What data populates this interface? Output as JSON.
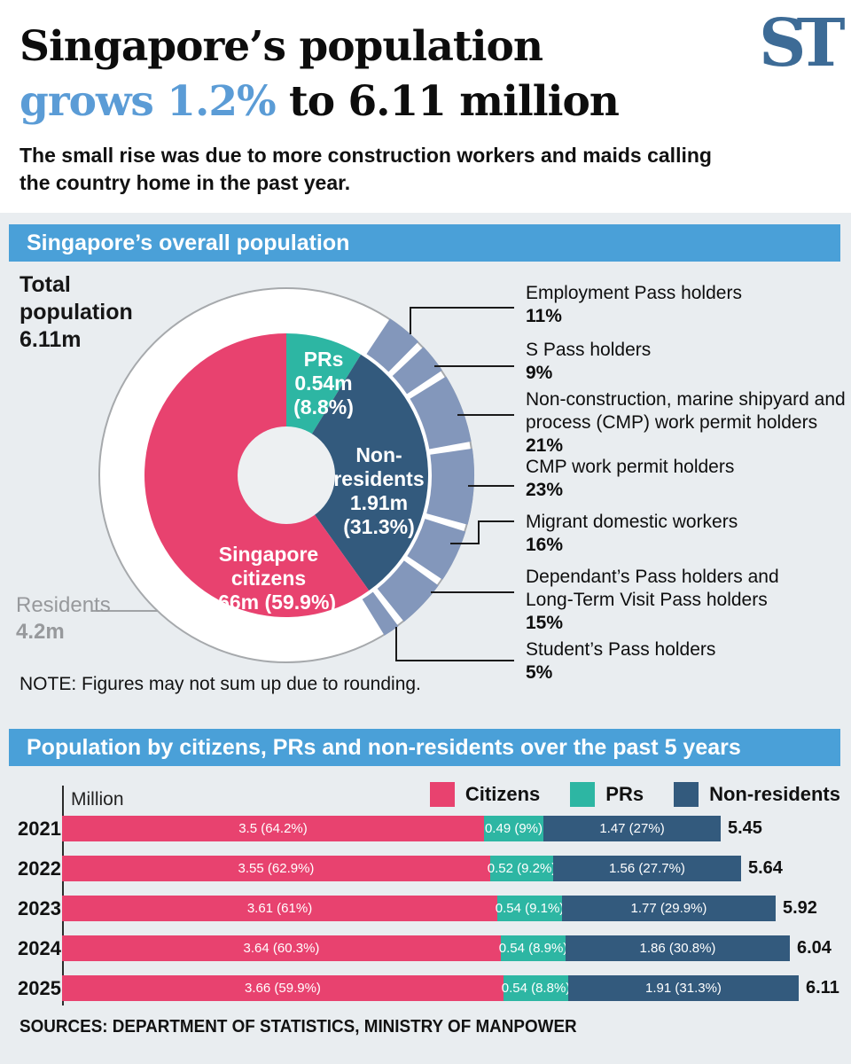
{
  "header": {
    "title_line1": "Singapore’s population",
    "title_line2_blue": "grows 1.2%",
    "title_line2_rest": " to 6.11 million",
    "subtitle": "The small rise was due to more construction workers and maids calling\nthe country home in the past year.",
    "logo": "ST"
  },
  "sources": "SOURCES: DEPARTMENT OF STATISTICS, MINISTRY OF MANPOWER",
  "colors": {
    "citizens": "#e8426f",
    "prs": "#2db6a3",
    "non_residents": "#335a7d",
    "breakdown_ring": "#8397bb",
    "band_blue": "#4aa0d8",
    "title_blue": "#5b9cd6",
    "logo_blue": "#3d6b96",
    "background": "#e9edf0"
  },
  "chart_data": [
    {
      "type": "pie",
      "title": "Singapore’s overall population",
      "total": {
        "label": "Total\npopulation",
        "value": "6.11m"
      },
      "residents": {
        "label": "Residents",
        "value": "4.2m"
      },
      "segments": [
        {
          "name": "Singapore citizens",
          "value_millions": 3.66,
          "pct": 59.9,
          "color": "#e8426f",
          "display": "Singapore\ncitizens\n3.66m (59.9%)"
        },
        {
          "name": "PRs",
          "value_millions": 0.54,
          "pct": 8.8,
          "color": "#2db6a3",
          "display": "PRs\n0.54m\n(8.8%)"
        },
        {
          "name": "Non-residents",
          "value_millions": 1.91,
          "pct": 31.3,
          "color": "#335a7d",
          "display": "Non-\nresidents\n1.91m\n(31.3%)"
        }
      ],
      "breakdown": {
        "of": "Non-residents",
        "color": "#8397bb",
        "items": [
          {
            "name": "Employment Pass holders",
            "pct_label": "11%",
            "value": 11
          },
          {
            "name": "S Pass holders",
            "pct_label": "9%",
            "value": 9
          },
          {
            "name": "Non-construction, marine shipyard and\nprocess (CMP) work permit holders",
            "pct_label": "21%",
            "value": 21
          },
          {
            "name": "CMP work permit holders",
            "pct_label": "23%",
            "value": 23
          },
          {
            "name": "Migrant domestic workers",
            "pct_label": "16%",
            "value": 16
          },
          {
            "name": "Dependant’s Pass holders and\nLong-Term Visit Pass holders",
            "pct_label": "15%",
            "value": 15
          },
          {
            "name": "Student’s Pass holders",
            "pct_label": "5%",
            "value": 5
          }
        ]
      },
      "note": "NOTE: Figures may not sum up due to rounding."
    },
    {
      "type": "bar",
      "title": "Population by citizens, PRs and non-residents over the past 5 years",
      "unit_label": "Million",
      "legend": [
        {
          "name": "Citizens",
          "color": "#e8426f"
        },
        {
          "name": "PRs",
          "color": "#2db6a3"
        },
        {
          "name": "Non-residents",
          "color": "#335a7d"
        }
      ],
      "rows": [
        {
          "year": "2021",
          "total": "5.45",
          "values": [
            3.5,
            0.49,
            1.47
          ],
          "labels": [
            "3.5 (64.2%)",
            "0.49 (9%)",
            "1.47 (27%)"
          ]
        },
        {
          "year": "2022",
          "total": "5.64",
          "values": [
            3.55,
            0.52,
            1.56
          ],
          "labels": [
            "3.55 (62.9%)",
            "0.52 (9.2%)",
            "1.56 (27.7%)"
          ]
        },
        {
          "year": "2023",
          "total": "5.92",
          "values": [
            3.61,
            0.54,
            1.77
          ],
          "labels": [
            "3.61 (61%)",
            "0.54 (9.1%)",
            "1.77 (29.9%)"
          ]
        },
        {
          "year": "2024",
          "total": "6.04",
          "values": [
            3.64,
            0.54,
            1.86
          ],
          "labels": [
            "3.64 (60.3%)",
            "0.54 (8.9%)",
            "1.86 (30.8%)"
          ]
        },
        {
          "year": "2025",
          "total": "6.11",
          "values": [
            3.66,
            0.54,
            1.91
          ],
          "labels": [
            "3.66 (59.9%)",
            "0.54 (8.8%)",
            "1.91 (31.3%)"
          ]
        }
      ]
    }
  ]
}
